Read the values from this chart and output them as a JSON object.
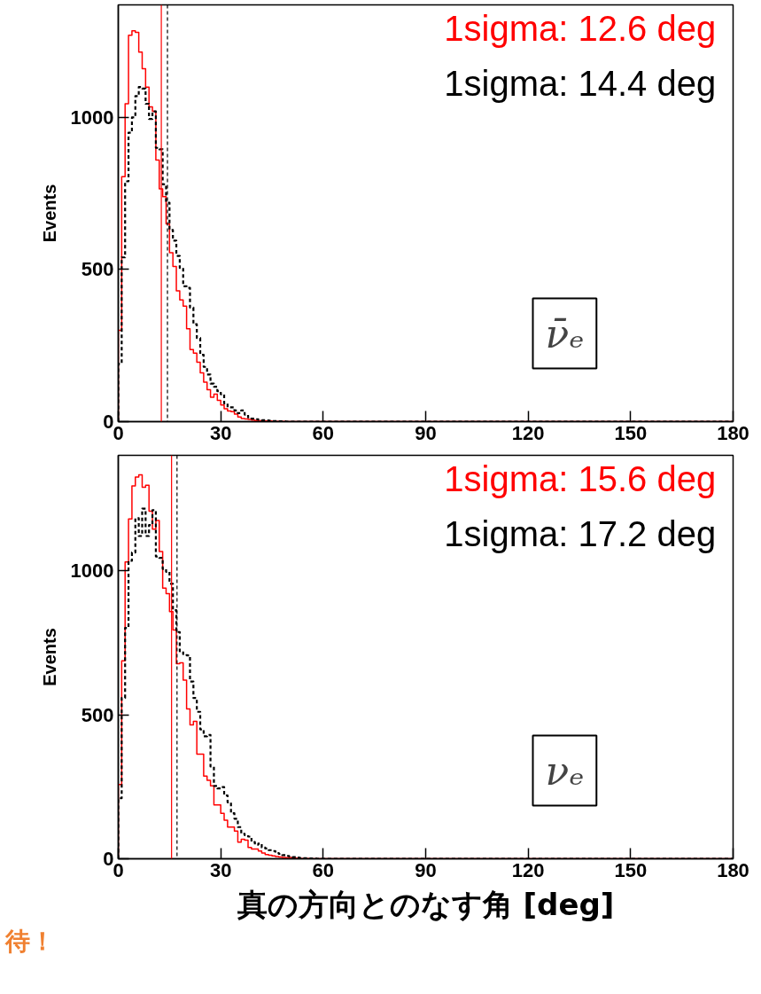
{
  "chart_data": [
    {
      "type": "histogram",
      "ylabel": "Events",
      "xlim": [
        0,
        180
      ],
      "ylim": [
        0,
        1370
      ],
      "xticks": [
        0,
        30,
        60,
        90,
        120,
        150,
        180
      ],
      "yticks": [
        0,
        500,
        1000
      ],
      "grid": false,
      "bins": [
        0,
        1,
        2,
        3,
        4,
        5,
        6,
        7,
        8,
        9,
        10,
        11,
        12,
        13,
        14,
        15,
        16,
        17,
        18,
        19,
        20,
        21,
        22,
        23,
        24,
        25,
        26,
        27,
        28,
        29,
        30,
        31,
        32,
        33,
        34,
        35,
        36,
        37,
        38,
        39,
        40,
        41,
        42,
        43,
        44,
        45,
        46,
        47,
        48,
        49,
        50,
        51,
        52,
        53,
        54,
        55,
        56,
        57,
        58,
        59,
        60,
        180
      ],
      "series": [
        {
          "color": "#ff0000",
          "line_style": "solid",
          "values": [
            300,
            805,
            1045,
            1270,
            1285,
            1280,
            1215,
            1160,
            1100,
            1035,
            1020,
            860,
            765,
            740,
            650,
            555,
            510,
            430,
            400,
            380,
            305,
            237,
            225,
            195,
            160,
            130,
            105,
            80,
            90,
            70,
            55,
            42,
            35,
            33,
            25,
            15,
            10,
            9,
            7,
            5,
            4,
            3,
            3,
            2,
            2,
            1,
            1,
            1,
            1,
            0,
            0,
            0,
            0,
            0,
            0,
            0,
            0,
            0,
            0,
            0,
            0
          ]
        },
        {
          "color": "#000000",
          "line_style": "dashed",
          "values": [
            190,
            540,
            790,
            950,
            1000,
            1070,
            1100,
            1095,
            1045,
            995,
            1020,
            900,
            895,
            780,
            720,
            630,
            595,
            545,
            505,
            445,
            440,
            375,
            320,
            275,
            220,
            180,
            155,
            125,
            115,
            100,
            90,
            60,
            47,
            47,
            37,
            28,
            37,
            23,
            14,
            10,
            8,
            6,
            5,
            4,
            3,
            2,
            2,
            1,
            1,
            0,
            0,
            0,
            0,
            0,
            0,
            0,
            0,
            0,
            0,
            0,
            0
          ]
        }
      ],
      "ref_lines": [
        {
          "axis": "x",
          "value": 12.6,
          "label": "1sigma: 12.6 deg",
          "color": "#ff0000",
          "line_style": "solid"
        },
        {
          "axis": "x",
          "value": 14.4,
          "label": "1sigma: 14.4 deg",
          "color": "#000000",
          "line_style": "dashed"
        }
      ],
      "annotations": [
        "ν̄ₑ"
      ]
    },
    {
      "type": "histogram",
      "xlabel": "真の方向とのなす角 [deg]",
      "ylabel": "Events",
      "xlim": [
        0,
        180
      ],
      "ylim": [
        0,
        1400
      ],
      "xticks": [
        0,
        30,
        60,
        90,
        120,
        150,
        180
      ],
      "yticks": [
        0,
        500,
        1000
      ],
      "grid": false,
      "bins": [
        0,
        1,
        2,
        3,
        4,
        5,
        6,
        7,
        8,
        9,
        10,
        11,
        12,
        13,
        14,
        15,
        16,
        17,
        18,
        19,
        20,
        21,
        22,
        23,
        24,
        25,
        26,
        27,
        28,
        29,
        30,
        31,
        32,
        33,
        34,
        35,
        36,
        37,
        38,
        39,
        40,
        41,
        42,
        43,
        44,
        45,
        46,
        47,
        48,
        49,
        50,
        51,
        52,
        53,
        54,
        55,
        56,
        57,
        58,
        59,
        60,
        180
      ],
      "series": [
        {
          "color": "#ff0000",
          "line_style": "solid",
          "values": [
            258,
            687,
            1030,
            1179,
            1294,
            1325,
            1332,
            1289,
            1296,
            1206,
            1144,
            1174,
            1066,
            939,
            920,
            858,
            794,
            677,
            680,
            620,
            520,
            465,
            477,
            363,
            363,
            287,
            272,
            253,
            187,
            187,
            158,
            134,
            110,
            110,
            96,
            58,
            68,
            65,
            39,
            34,
            34,
            27,
            20,
            15,
            12,
            10,
            8,
            6,
            5,
            4,
            5,
            3,
            2,
            1,
            1,
            1,
            0,
            0,
            0,
            0,
            0
          ]
        },
        {
          "color": "#000000",
          "line_style": "dashed",
          "values": [
            210,
            558,
            801,
            1034,
            1063,
            1182,
            1120,
            1215,
            1120,
            1158,
            1210,
            1049,
            1044,
            1006,
            996,
            954,
            863,
            787,
            720,
            710,
            706,
            615,
            558,
            510,
            449,
            425,
            430,
            320,
            253,
            244,
            249,
            220,
            196,
            158,
            139,
            110,
            87,
            82,
            77,
            58,
            49,
            53,
            39,
            36,
            30,
            27,
            20,
            17,
            13,
            10,
            8,
            6,
            4,
            3,
            2,
            2,
            1,
            1,
            0,
            0,
            0
          ]
        }
      ],
      "ref_lines": [
        {
          "axis": "x",
          "value": 15.6,
          "label": "1sigma: 15.6 deg",
          "color": "#ff0000",
          "line_style": "solid"
        },
        {
          "axis": "x",
          "value": 17.2,
          "label": "1sigma: 17.2 deg",
          "color": "#000000",
          "line_style": "dashed"
        }
      ],
      "annotations": [
        "νₑ",
        "待！"
      ]
    }
  ]
}
